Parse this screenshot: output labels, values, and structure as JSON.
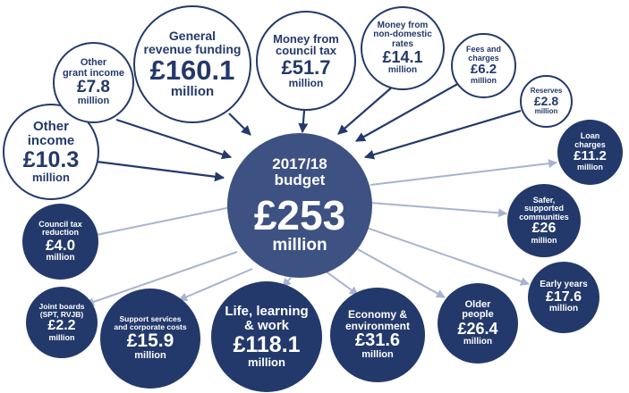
{
  "center": {
    "label": "2017/18\nbudget",
    "amount": "£253",
    "unit": "million"
  },
  "income": [
    {
      "label": "Other\nincome",
      "amount": "£10.3",
      "unit": "million"
    },
    {
      "label": "Other\ngrant income",
      "amount": "£7.8",
      "unit": "million"
    },
    {
      "label": "General\nrevenue funding",
      "amount": "£160.1",
      "unit": "million"
    },
    {
      "label": "Money from\ncouncil tax",
      "amount": "£51.7",
      "unit": "million"
    },
    {
      "label": "Money from\nnon-domestic\nrates",
      "amount": "£14.1",
      "unit": "million"
    },
    {
      "label": "Fees and\ncharges",
      "amount": "£6.2",
      "unit": "million"
    },
    {
      "label": "Reserves",
      "amount": "£2.8",
      "unit": "million"
    }
  ],
  "spending": [
    {
      "label": "Loan\ncharges",
      "amount": "£11.2",
      "unit": "million"
    },
    {
      "label": "Safer,\nsupported\ncommunities",
      "amount": "£26",
      "unit": "million"
    },
    {
      "label": "Early years",
      "amount": "£17.6",
      "unit": "million"
    },
    {
      "label": "Older\npeople",
      "amount": "£26.4",
      "unit": "million"
    },
    {
      "label": "Economy &\nenvironment",
      "amount": "£31.6",
      "unit": "million"
    },
    {
      "label": "Life, learning\n& work",
      "amount": "£118.1",
      "unit": "million"
    },
    {
      "label": "Support services\nand corporate costs",
      "amount": "£15.9",
      "unit": "million"
    },
    {
      "label": "Joint boards\n(SPT, RVJB)",
      "amount": "£2.2",
      "unit": "million"
    },
    {
      "label": "Council tax\nreduction",
      "amount": "£4.0",
      "unit": "million"
    }
  ],
  "colors": {
    "navy": "#23396b",
    "center": "#3d5183",
    "arrow_in": "#23396b",
    "arrow_out": "#a9b3cf"
  }
}
